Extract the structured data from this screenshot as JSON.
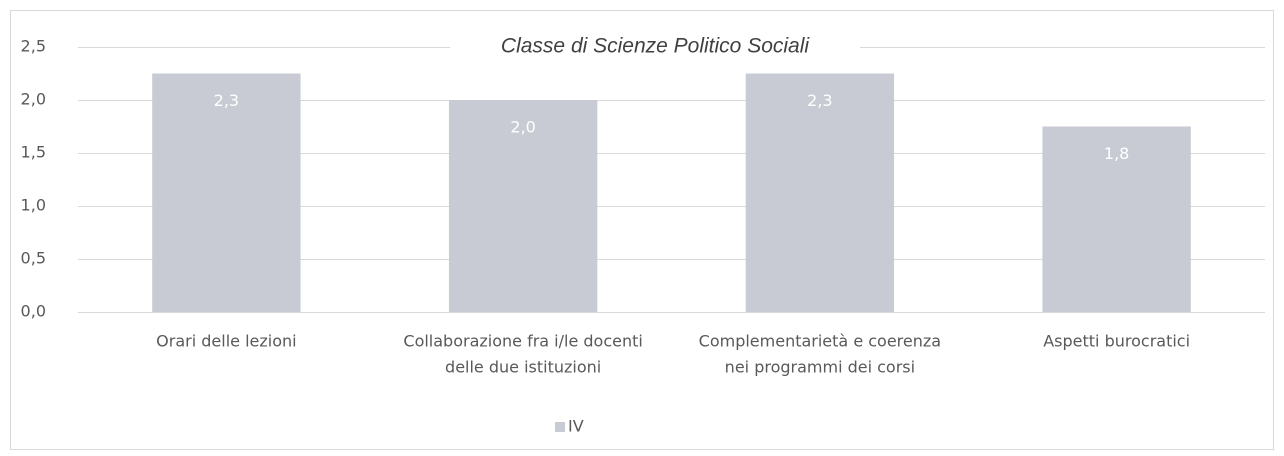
{
  "chart_data": {
    "type": "bar",
    "title": "Classe di Scienze Politico Sociali",
    "categories": [
      [
        "Orari delle lezioni"
      ],
      [
        "Collaborazione fra i/le docenti",
        "delle due istituzioni"
      ],
      [
        "Complementarietà e coerenza",
        "nei programmi dei corsi"
      ],
      [
        "Aspetti burocratici"
      ]
    ],
    "series": [
      {
        "name": "IV",
        "color": "#c9cbd4",
        "values": [
          2.25,
          2.0,
          2.25,
          1.75
        ],
        "value_labels": [
          "2,3",
          "2,0",
          "2,3",
          "1,8"
        ]
      }
    ],
    "ylim": [
      0,
      2.5
    ],
    "yticks": [
      {
        "value": 0,
        "label": "0,0"
      },
      {
        "value": 0.5,
        "label": "0,5"
      },
      {
        "value": 1,
        "label": "1,0"
      },
      {
        "value": 1.5,
        "label": "1,5"
      },
      {
        "value": 2,
        "label": "2,0"
      },
      {
        "value": 2.5,
        "label": "2,5"
      }
    ],
    "grid": true,
    "legend": "bottom"
  }
}
